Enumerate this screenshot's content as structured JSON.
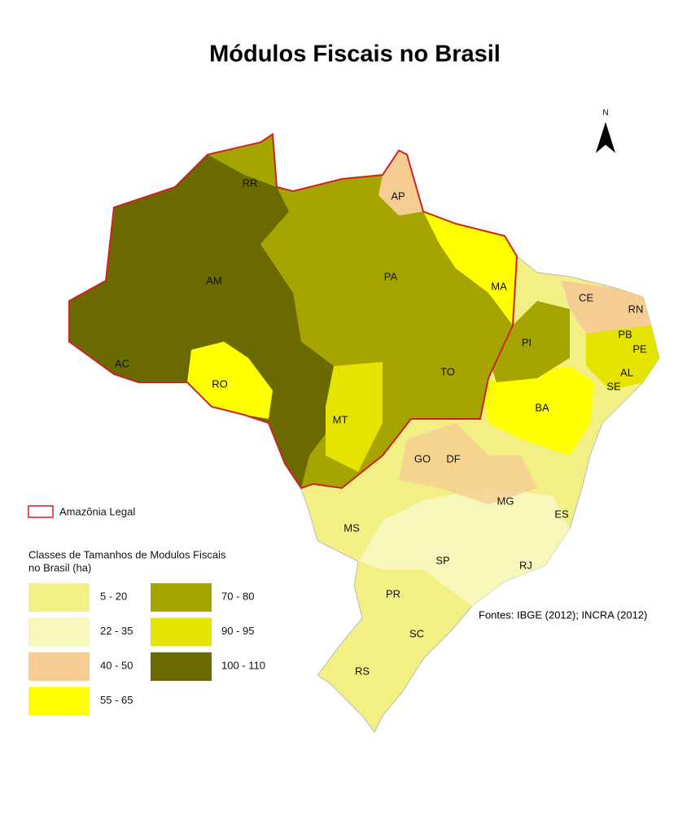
{
  "title": "Módulos Fiscais no Brasil",
  "north": "N",
  "states": [
    "RR",
    "AP",
    "AM",
    "PA",
    "MA",
    "CE",
    "RN",
    "PB",
    "PE",
    "AC",
    "PI",
    "AL",
    "SE",
    "RO",
    "TO",
    "BA",
    "MT",
    "GO",
    "DF",
    "MG",
    "ES",
    "MS",
    "SP",
    "RJ",
    "PR",
    "SC",
    "RS"
  ],
  "legend": {
    "amazonia": {
      "label": "Amazônia Legal",
      "color": "#cc2222"
    },
    "classes_title": [
      "Classes de Tamanhos de Modulos Fiscais",
      "no Brasil (ha)"
    ],
    "classes": [
      {
        "label": "5 - 20",
        "color": "#f2ef84"
      },
      {
        "label": "22 - 35",
        "color": "#f8f7bb"
      },
      {
        "label": "40 - 50",
        "color": "#f5cd92"
      },
      {
        "label": "55 - 65",
        "color": "#ffff00"
      },
      {
        "label": "70 - 80",
        "color": "#a6a400"
      },
      {
        "label": "90 - 95",
        "color": "#e4e400"
      },
      {
        "label": "100 - 110",
        "color": "#6b6a00"
      }
    ]
  },
  "source": "Fontes: IBGE (2012); INCRA (2012)"
}
